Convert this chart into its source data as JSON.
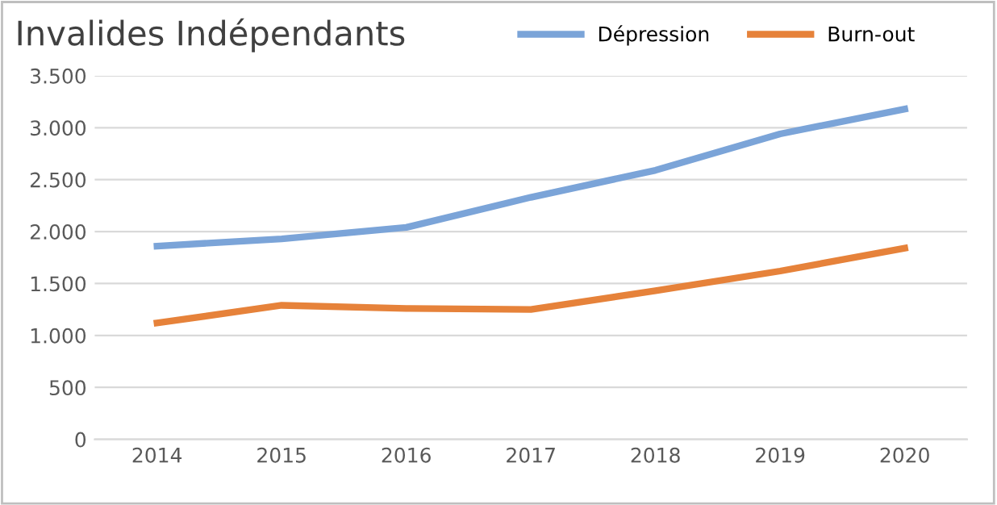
{
  "chart_data": {
    "type": "line",
    "title": "Invalides Indépendants",
    "categories": [
      "2014",
      "2015",
      "2016",
      "2017",
      "2018",
      "2019",
      "2020"
    ],
    "series": [
      {
        "name": "Dépression",
        "color": "#7ba4d8",
        "values": [
          1860,
          1930,
          2040,
          2330,
          2590,
          2940,
          3180
        ]
      },
      {
        "name": "Burn-out",
        "color": "#e6823a",
        "values": [
          1120,
          1290,
          1260,
          1250,
          1430,
          1620,
          1840
        ]
      }
    ],
    "ylim": [
      0,
      3500
    ],
    "yticks": [
      0,
      500,
      {
        "value": 1000,
        "label": "1.000"
      },
      {
        "value": 1500,
        "label": "1.500"
      },
      {
        "value": 2000,
        "label": "2.000"
      },
      {
        "value": 2500,
        "label": "2.500"
      },
      {
        "value": 3000,
        "label": "3.000"
      },
      {
        "value": 3500,
        "label": "3.500"
      }
    ],
    "grid": "y",
    "legend": "top",
    "marker": "none",
    "line_style": "solid"
  }
}
